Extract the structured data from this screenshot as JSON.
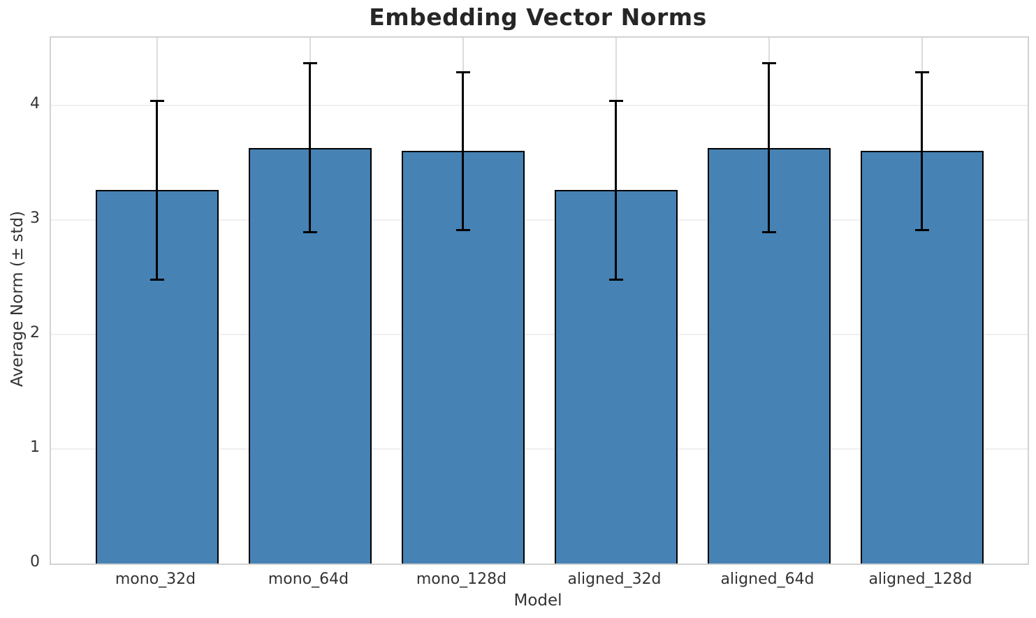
{
  "chart_data": {
    "type": "bar",
    "title": "Embedding Vector Norms",
    "xlabel": "Model",
    "ylabel": "Average Norm (± std)",
    "categories": [
      "mono_32d",
      "mono_64d",
      "mono_128d",
      "aligned_32d",
      "aligned_64d",
      "aligned_128d"
    ],
    "values": [
      3.26,
      3.63,
      3.6,
      3.26,
      3.63,
      3.6
    ],
    "errors": [
      0.78,
      0.74,
      0.69,
      0.78,
      0.74,
      0.69
    ],
    "yticks": [
      0,
      1,
      2,
      3,
      4
    ],
    "ylim": [
      0,
      4.59
    ],
    "grid": true,
    "legend_position": "none",
    "colors": {
      "bar_fill": "#4682b4",
      "bar_edge": "#000000",
      "error_bar": "#000000",
      "grid_horizontal": "#efefef",
      "grid_vertical": "#dcdcdc",
      "plot_border": "#d2d2d2",
      "title_text": "#262626",
      "tick_text": "#333333"
    }
  }
}
